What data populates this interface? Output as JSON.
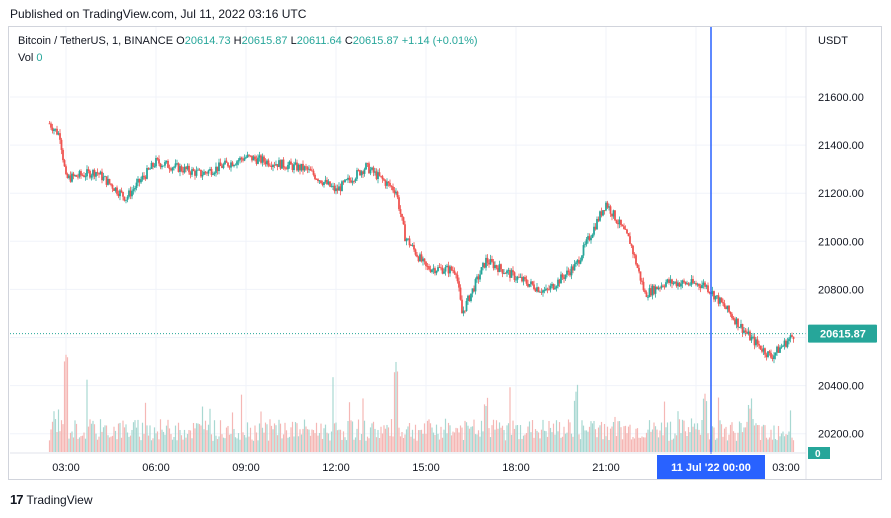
{
  "header": {
    "published": "Published on TradingView.com, Jul 11, 2022 03:16 UTC"
  },
  "legend": {
    "symbol": "Bitcoin / TetherUS, 1, BINANCE",
    "o_label": "O",
    "o": "20614.73",
    "h_label": "H",
    "h": "20615.87",
    "l_label": "L",
    "l": "20611.64",
    "c_label": "C",
    "c": "20615.87",
    "change": "+1.14 (+0.01%)",
    "vol_label": "Vol",
    "vol": "0"
  },
  "footer": {
    "brand": "TradingView",
    "logo_text": "17"
  },
  "colors": {
    "up": "#26a69a",
    "down": "#ef5350",
    "crosshair": "#2962ff",
    "price_tag": "#26a69a",
    "vol_up": "#a8d8d2",
    "vol_down": "#f5b7b5"
  },
  "chart_data": {
    "type": "candlestick",
    "y_unit": "USDT",
    "ylim": [
      20120,
      21780
    ],
    "yticks": [
      "21600.00",
      "21400.00",
      "21200.00",
      "21000.00",
      "20800.00",
      "20600.00",
      "20400.00",
      "20200.00"
    ],
    "ytick_values": [
      21600,
      21400,
      21200,
      21000,
      20800,
      20600,
      20400,
      20200
    ],
    "xlim": [
      1.5,
      4.4
    ],
    "xticks": [
      "03:00",
      "06:00",
      "09:00",
      "12:00",
      "15:00",
      "18:00",
      "21:00",
      "00:00",
      "03:00"
    ],
    "xtick_hours": [
      3,
      6,
      9,
      12,
      15,
      18,
      21,
      24,
      27
    ],
    "last_price": "20615.87",
    "last_value": 20615.87,
    "crosshair_label": "11 Jul '22   00:00",
    "crosshair_hour": 24.5,
    "volume_label": "0",
    "price_path": [
      [
        2.45,
        21490
      ],
      [
        2.8,
        21440
      ],
      [
        3.0,
        21260
      ],
      [
        4.0,
        21290
      ],
      [
        5.0,
        21180
      ],
      [
        6.0,
        21330
      ],
      [
        7.5,
        21280
      ],
      [
        9.0,
        21350
      ],
      [
        11.0,
        21300
      ],
      [
        12.0,
        21210
      ],
      [
        13.0,
        21310
      ],
      [
        14.0,
        21210
      ],
      [
        14.3,
        21020
      ],
      [
        15.0,
        20890
      ],
      [
        16.0,
        20880
      ],
      [
        16.2,
        20700
      ],
      [
        17.0,
        20920
      ],
      [
        18.0,
        20850
      ],
      [
        19.0,
        20790
      ],
      [
        20.0,
        20900
      ],
      [
        21.0,
        21160
      ],
      [
        21.8,
        21000
      ],
      [
        22.3,
        20780
      ],
      [
        23.0,
        20830
      ],
      [
        24.3,
        20820
      ],
      [
        25.0,
        20720
      ],
      [
        25.8,
        20600
      ],
      [
        26.5,
        20520
      ],
      [
        27.3,
        20615.87
      ]
    ],
    "volume_spikes": [
      [
        3.0,
        0.45
      ],
      [
        14.0,
        0.43
      ],
      [
        17.0,
        0.28
      ],
      [
        20.0,
        0.31
      ],
      [
        24.3,
        0.32
      ],
      [
        25.8,
        0.27
      ]
    ]
  }
}
